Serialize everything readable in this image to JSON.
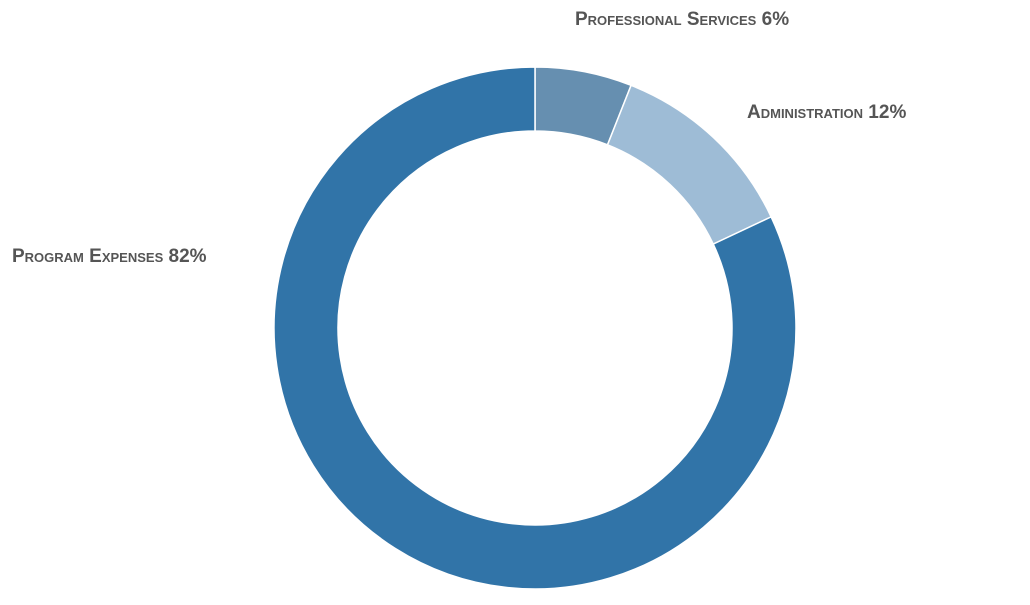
{
  "chart_data": {
    "type": "pie",
    "donut": true,
    "start_angle_deg": 0,
    "direction": "clockwise",
    "slices": [
      {
        "name": "Professional Services",
        "value": 6,
        "label": "Professional Services 6%",
        "color": "#668fb0"
      },
      {
        "name": "Administration",
        "value": 12,
        "label": "Administration 12%",
        "color": "#9ebcd6"
      },
      {
        "name": "Program Expenses",
        "value": 82,
        "label": "Program Expenses 82%",
        "color": "#3174a8"
      }
    ],
    "title": "",
    "legend": "none"
  }
}
